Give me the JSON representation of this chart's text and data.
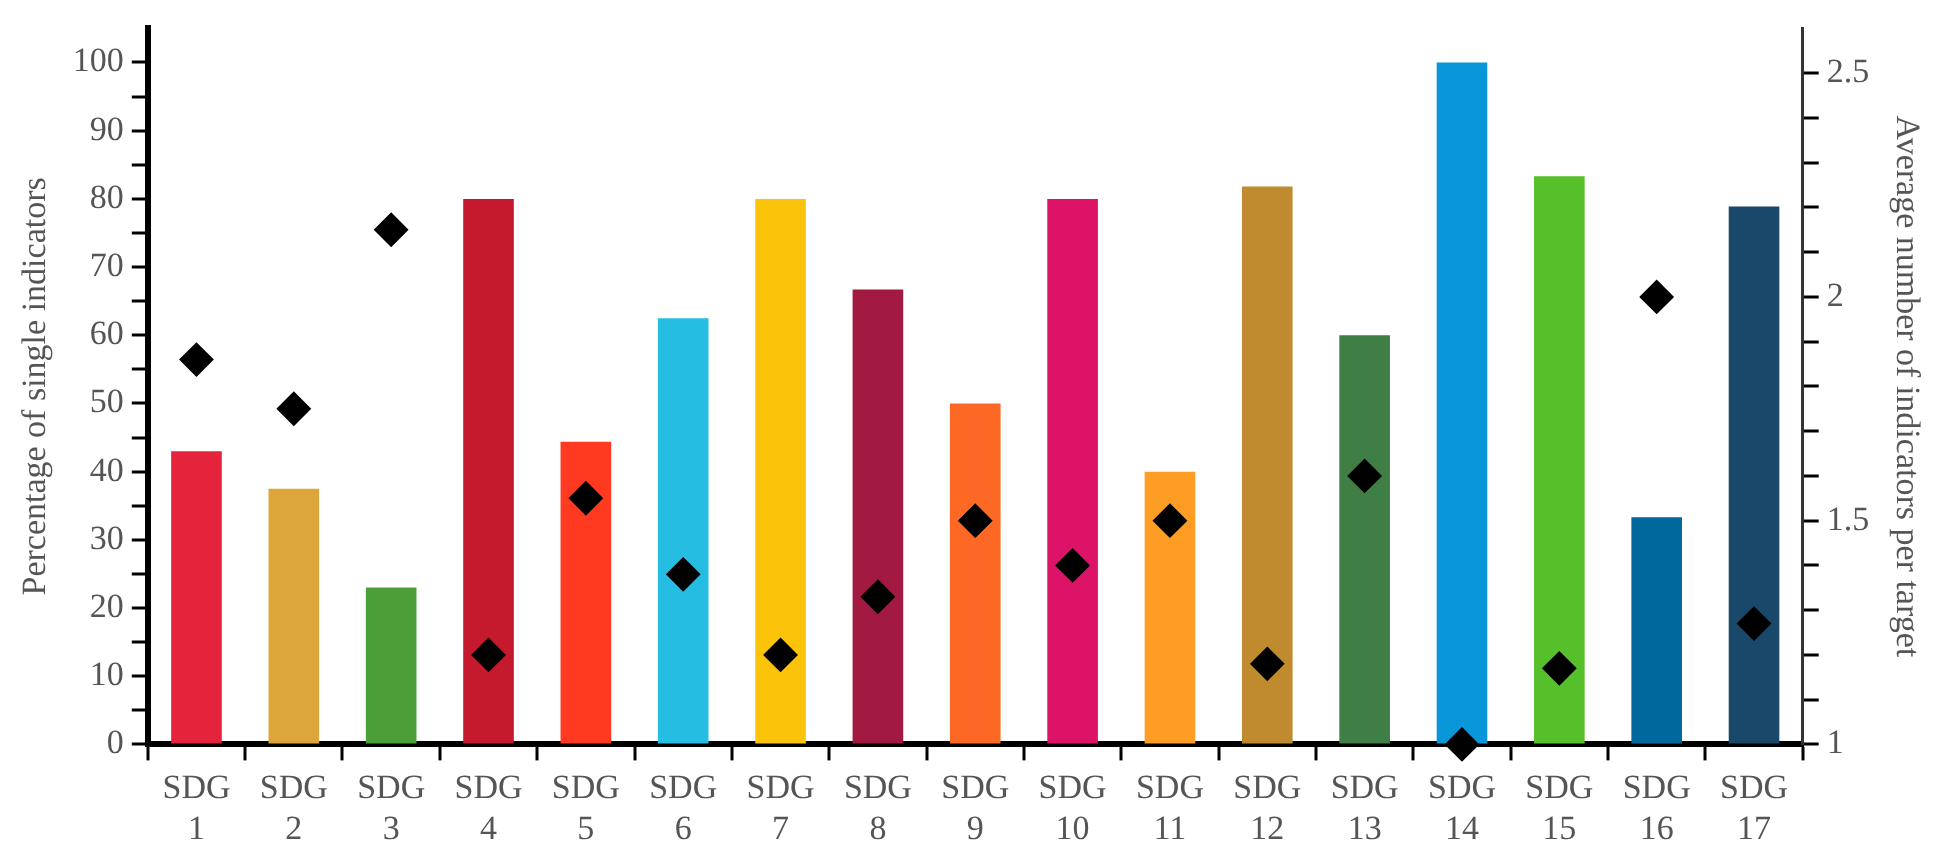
{
  "chart_data": {
    "type": "bar",
    "ylabel": "Percentage of single indicators",
    "y2label": "Average number of indicators per target",
    "categories": [
      "SDG 1",
      "SDG 2",
      "SDG 3",
      "SDG 4",
      "SDG 5",
      "SDG 6",
      "SDG 7",
      "SDG 8",
      "SDG 9",
      "SDG 10",
      "SDG 11",
      "SDG 12",
      "SDG 13",
      "SDG 14",
      "SDG 15",
      "SDG 16",
      "SDG 17"
    ],
    "series": [
      {
        "values": [
          43,
          37.5,
          23,
          80,
          44.4,
          62.5,
          80,
          66.7,
          50,
          80,
          40,
          81.8,
          60,
          100,
          83.3,
          33.3,
          78.9
        ],
        "colors": [
          "#e5243b",
          "#dda63a",
          "#4c9f38",
          "#c5192d",
          "#ff3a21",
          "#26bde2",
          "#fcc30b",
          "#a21942",
          "#fd6925",
          "#dd1367",
          "#fd9d24",
          "#bf8b2e",
          "#3f7e44",
          "#0a97d9",
          "#56c02b",
          "#00689d",
          "#19486a"
        ]
      },
      {
        "type": "scatter",
        "axis": "y2",
        "color": "#000000",
        "marker": "diamond",
        "values": [
          1.86,
          1.75,
          2.15,
          1.2,
          1.55,
          1.38,
          1.2,
          1.33,
          1.5,
          1.4,
          1.5,
          1.18,
          1.6,
          1,
          1.17,
          2,
          1.27
        ]
      }
    ],
    "ylim": [
      0,
      105
    ],
    "yticks": [
      0,
      {
        "value": 5,
        "label": null
      },
      10,
      {
        "value": 15,
        "label": null
      },
      20,
      {
        "value": 25,
        "label": null
      },
      30,
      {
        "value": 35,
        "label": null
      },
      40,
      {
        "value": 45,
        "label": null
      },
      50,
      {
        "value": 55,
        "label": null
      },
      60,
      {
        "value": 65,
        "label": null
      },
      70,
      {
        "value": 75,
        "label": null
      },
      80,
      {
        "value": 85,
        "label": null
      },
      90,
      {
        "value": 95,
        "label": null
      },
      100
    ],
    "y2lim": [
      1,
      2.6
    ],
    "y2ticks": [
      1,
      {
        "value": 1.1,
        "label": null
      },
      {
        "value": 1.2,
        "label": null
      },
      {
        "value": 1.3,
        "label": null
      },
      {
        "value": 1.4,
        "label": null
      },
      1.5,
      {
        "value": 1.6,
        "label": null
      },
      {
        "value": 1.7,
        "label": null
      },
      {
        "value": 1.8,
        "label": null
      },
      {
        "value": 1.9,
        "label": null
      },
      2,
      {
        "value": 2.1,
        "label": null
      },
      {
        "value": 2.2,
        "label": null
      },
      {
        "value": 2.3,
        "label": null
      },
      {
        "value": 2.4,
        "label": null
      },
      2.5
    ],
    "grid": false,
    "legend": false
  }
}
